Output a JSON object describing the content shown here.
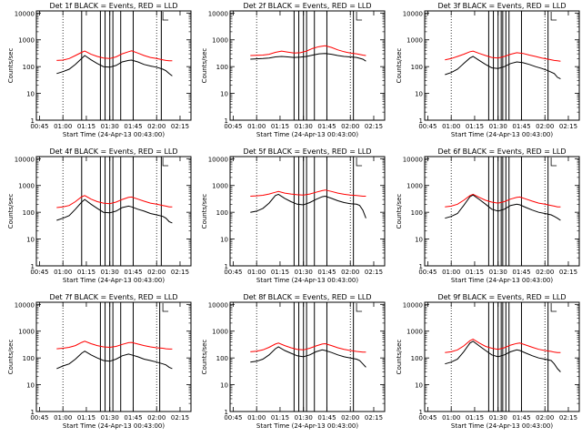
{
  "chart_data": {
    "type": "line",
    "layout": "3x3 grid of panels",
    "shared": {
      "xlabel": "Start Time (24-Apr-13 00:43:00)",
      "ylabel": "Counts/sec",
      "x_ticks": [
        "00:45",
        "01:00",
        "01:15",
        "01:30",
        "01:45",
        "02:00",
        "02:15"
      ],
      "x_tick_minutes": [
        45,
        60,
        75,
        90,
        105,
        120,
        135
      ],
      "xlim_minutes": [
        43,
        142
      ],
      "y_scale": "log",
      "y_ticks": [
        "1",
        "10",
        "100",
        "1000",
        "10000"
      ],
      "ylim": [
        1,
        12000
      ],
      "series_colors": {
        "Events": "#000000",
        "LLD": "#ff0000"
      },
      "dotted_markers_minutes": [
        60,
        120
      ],
      "curve_time_range_minutes": [
        56,
        130
      ]
    },
    "panels": [
      {
        "title": "Det 1f BLACK = Events, RED = LLD",
        "series": [
          {
            "color": "#000000",
            "x": [
              56,
              60,
              64,
              68,
              72,
              74,
              78,
              82,
              86,
              90,
              94,
              98,
              102,
              104,
              108,
              112,
              116,
              120,
              124,
              126,
              128,
              130
            ],
            "y": [
              55,
              65,
              80,
              120,
              200,
              260,
              180,
              130,
              100,
              95,
              110,
              150,
              170,
              175,
              150,
              120,
              105,
              95,
              80,
              70,
              55,
              45
            ]
          },
          {
            "color": "#ff0000",
            "x": [
              56,
              60,
              64,
              68,
              72,
              74,
              78,
              82,
              86,
              90,
              94,
              98,
              102,
              104,
              108,
              112,
              116,
              120,
              124,
              126,
              128,
              130
            ],
            "y": [
              170,
              175,
              200,
              260,
              340,
              380,
              290,
              240,
              210,
              200,
              230,
              300,
              360,
              390,
              320,
              260,
              220,
              200,
              180,
              170,
              165,
              165
            ]
          }
        ],
        "vlines_minutes": [
          72,
          84,
          87,
          90,
          92,
          97,
          105,
          123
        ]
      },
      {
        "title": "Det 2f BLACK = Events, RED = LLD",
        "series": [
          {
            "color": "#000000",
            "x": [
              56,
              60,
              64,
              68,
              72,
              76,
              80,
              84,
              88,
              92,
              96,
              100,
              104,
              108,
              112,
              116,
              120,
              124,
              128,
              130
            ],
            "y": [
              190,
              195,
              200,
              210,
              230,
              240,
              230,
              220,
              225,
              240,
              270,
              300,
              310,
              290,
              260,
              240,
              230,
              220,
              190,
              160
            ]
          },
          {
            "color": "#ff0000",
            "x": [
              56,
              60,
              64,
              68,
              72,
              76,
              80,
              84,
              88,
              92,
              96,
              100,
              104,
              108,
              112,
              116,
              120,
              124,
              128,
              130
            ],
            "y": [
              260,
              265,
              270,
              290,
              340,
              380,
              350,
              320,
              330,
              380,
              480,
              560,
              600,
              520,
              420,
              360,
              320,
              300,
              270,
              260
            ]
          }
        ],
        "vlines_minutes": [
          84,
          87,
          90,
          92,
          97,
          105,
          122
        ]
      },
      {
        "title": "Det 3f BLACK = Events, RED = LLD",
        "series": [
          {
            "color": "#000000",
            "x": [
              56,
              60,
              64,
              68,
              72,
              74,
              78,
              82,
              86,
              90,
              94,
              98,
              102,
              106,
              110,
              114,
              118,
              122,
              126,
              128,
              130
            ],
            "y": [
              50,
              60,
              80,
              130,
              210,
              240,
              170,
              120,
              90,
              85,
              100,
              130,
              150,
              140,
              120,
              100,
              85,
              70,
              55,
              40,
              35
            ]
          },
          {
            "color": "#ff0000",
            "x": [
              56,
              60,
              64,
              68,
              72,
              74,
              78,
              82,
              86,
              90,
              94,
              98,
              102,
              106,
              110,
              114,
              118,
              122,
              126,
              128,
              130
            ],
            "y": [
              180,
              200,
              240,
              290,
              360,
              380,
              310,
              260,
              220,
              210,
              240,
              290,
              330,
              310,
              270,
              240,
              210,
              190,
              170,
              165,
              160
            ]
          }
        ],
        "vlines_minutes": [
          84,
          87,
          90,
          92,
          93,
          95,
          97,
          105,
          122
        ]
      },
      {
        "title": "Det 4f BLACK = Events, RED = LLD",
        "series": [
          {
            "color": "#000000",
            "x": [
              56,
              60,
              64,
              68,
              72,
              74,
              78,
              82,
              86,
              90,
              94,
              98,
              102,
              104,
              108,
              112,
              116,
              120,
              124,
              126,
              128,
              130
            ],
            "y": [
              50,
              60,
              75,
              130,
              240,
              300,
              200,
              140,
              100,
              95,
              110,
              150,
              170,
              160,
              130,
              110,
              90,
              80,
              70,
              60,
              45,
              40
            ]
          },
          {
            "color": "#ff0000",
            "x": [
              56,
              60,
              64,
              68,
              72,
              74,
              78,
              82,
              86,
              90,
              94,
              98,
              102,
              104,
              108,
              112,
              116,
              120,
              124,
              126,
              128,
              130
            ],
            "y": [
              150,
              160,
              180,
              250,
              380,
              420,
              310,
              250,
              220,
              210,
              240,
              300,
              360,
              370,
              310,
              260,
              220,
              200,
              180,
              170,
              160,
              160
            ]
          }
        ],
        "vlines_minutes": [
          72,
          84,
          87,
          90,
          92,
          97,
          105,
          123
        ]
      },
      {
        "title": "Det 5f BLACK = Events, RED = LLD",
        "series": [
          {
            "color": "#000000",
            "x": [
              56,
              60,
              64,
              68,
              72,
              74,
              78,
              82,
              86,
              90,
              94,
              98,
              102,
              104,
              108,
              112,
              116,
              120,
              124,
              126,
              128,
              130
            ],
            "y": [
              100,
              110,
              140,
              220,
              420,
              470,
              330,
              250,
              200,
              190,
              230,
              300,
              380,
              400,
              330,
              270,
              230,
              210,
              200,
              180,
              120,
              60
            ]
          },
          {
            "color": "#ff0000",
            "x": [
              56,
              60,
              64,
              68,
              72,
              74,
              78,
              82,
              86,
              90,
              94,
              98,
              102,
              104,
              108,
              112,
              116,
              120,
              124,
              126,
              128,
              130
            ],
            "y": [
              400,
              410,
              430,
              480,
              560,
              600,
              520,
              480,
              450,
              440,
              480,
              560,
              640,
              680,
              600,
              520,
              470,
              440,
              420,
              410,
              400,
              400
            ]
          }
        ],
        "vlines_minutes": [
          84,
          87,
          90,
          92,
          97,
          105,
          122
        ]
      },
      {
        "title": "Det 6f BLACK = Events, RED = LLD",
        "series": [
          {
            "color": "#000000",
            "x": [
              56,
              60,
              64,
              68,
              72,
              74,
              78,
              82,
              86,
              90,
              94,
              98,
              102,
              104,
              108,
              112,
              116,
              120,
              124,
              126,
              128,
              130
            ],
            "y": [
              60,
              70,
              90,
              180,
              380,
              440,
              300,
              200,
              130,
              110,
              130,
              180,
              200,
              190,
              150,
              120,
              100,
              90,
              80,
              70,
              60,
              50
            ]
          },
          {
            "color": "#ff0000",
            "x": [
              56,
              60,
              64,
              68,
              72,
              74,
              78,
              82,
              86,
              90,
              94,
              98,
              102,
              104,
              108,
              112,
              116,
              120,
              124,
              126,
              128,
              130
            ],
            "y": [
              160,
              170,
              200,
              280,
              420,
              470,
              360,
              280,
              240,
              220,
              250,
              310,
              360,
              370,
              310,
              260,
              220,
              200,
              180,
              170,
              160,
              160
            ]
          }
        ],
        "vlines_minutes": [
          84,
          87,
          90,
          92,
          93,
          95,
          97,
          105,
          122
        ]
      },
      {
        "title": "Det 7f BLACK = Events, RED = LLD",
        "series": [
          {
            "color": "#000000",
            "x": [
              56,
              60,
              64,
              68,
              72,
              74,
              78,
              82,
              86,
              90,
              94,
              98,
              102,
              104,
              108,
              112,
              116,
              120,
              124,
              126,
              128,
              130
            ],
            "y": [
              40,
              50,
              60,
              90,
              150,
              180,
              130,
              100,
              80,
              75,
              90,
              120,
              140,
              130,
              110,
              90,
              80,
              70,
              60,
              55,
              45,
              40
            ]
          },
          {
            "color": "#ff0000",
            "x": [
              56,
              60,
              64,
              68,
              72,
              74,
              78,
              82,
              86,
              90,
              94,
              98,
              102,
              104,
              108,
              112,
              116,
              120,
              124,
              126,
              128,
              130
            ],
            "y": [
              220,
              230,
              250,
              290,
              380,
              420,
              340,
              290,
              260,
              250,
              270,
              320,
              370,
              380,
              330,
              290,
              260,
              240,
              230,
              220,
              215,
              215
            ]
          }
        ],
        "vlines_minutes": [
          84,
          87,
          90,
          92,
          97,
          105,
          122
        ]
      },
      {
        "title": "Det 8f BLACK = Events, RED = LLD",
        "series": [
          {
            "color": "#000000",
            "x": [
              56,
              60,
              64,
              68,
              72,
              74,
              78,
              82,
              86,
              90,
              94,
              98,
              102,
              104,
              108,
              112,
              116,
              120,
              124,
              126,
              128,
              130
            ],
            "y": [
              70,
              75,
              90,
              130,
              220,
              260,
              190,
              150,
              120,
              110,
              130,
              170,
              200,
              190,
              160,
              130,
              110,
              100,
              90,
              80,
              60,
              45
            ]
          },
          {
            "color": "#ff0000",
            "x": [
              56,
              60,
              64,
              68,
              72,
              74,
              78,
              82,
              86,
              90,
              94,
              98,
              102,
              104,
              108,
              112,
              116,
              120,
              124,
              126,
              128,
              130
            ],
            "y": [
              170,
              180,
              200,
              250,
              330,
              360,
              290,
              240,
              210,
              200,
              230,
              280,
              330,
              340,
              290,
              240,
              210,
              190,
              175,
              170,
              165,
              165
            ]
          }
        ],
        "vlines_minutes": [
          84,
          87,
          90,
          92,
          97,
          105,
          122
        ]
      },
      {
        "title": "Det 9f BLACK = Events, RED = LLD",
        "series": [
          {
            "color": "#000000",
            "x": [
              56,
              60,
              64,
              68,
              72,
              74,
              78,
              82,
              86,
              90,
              94,
              98,
              102,
              104,
              108,
              112,
              116,
              120,
              124,
              126,
              128,
              130
            ],
            "y": [
              60,
              70,
              90,
              170,
              360,
              420,
              280,
              190,
              130,
              110,
              130,
              170,
              200,
              190,
              150,
              120,
              100,
              90,
              80,
              60,
              40,
              30
            ]
          },
          {
            "color": "#ff0000",
            "x": [
              56,
              60,
              64,
              68,
              72,
              74,
              78,
              82,
              86,
              90,
              94,
              98,
              102,
              104,
              108,
              112,
              116,
              120,
              124,
              126,
              128,
              130
            ],
            "y": [
              160,
              170,
              200,
              280,
              440,
              500,
              360,
              270,
              230,
              210,
              240,
              300,
              350,
              360,
              300,
              250,
              210,
              190,
              175,
              165,
              160,
              160
            ]
          }
        ],
        "vlines_minutes": [
          84,
          87,
          90,
          92,
          93,
          95,
          97,
          105,
          122
        ]
      }
    ]
  }
}
